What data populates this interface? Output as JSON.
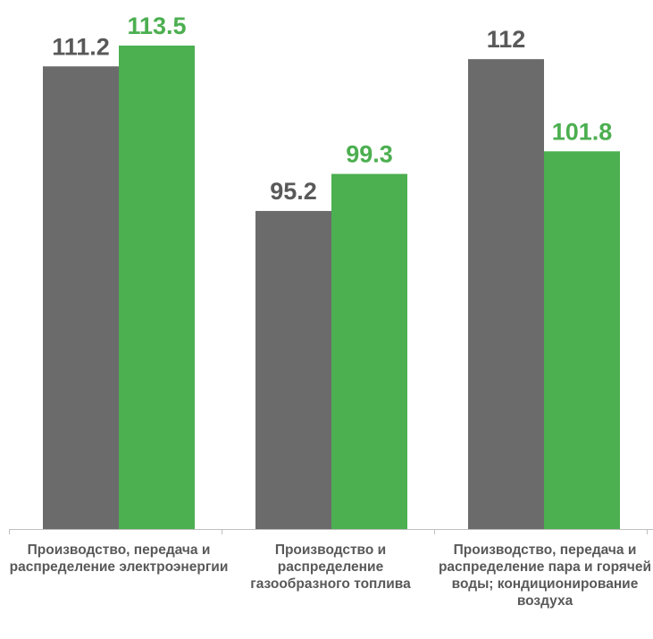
{
  "chart_data": {
    "type": "bar",
    "categories": [
      "Производство, передача и распределение электроэнергии",
      "Производство и распределение газообразного топлива",
      "Производство, передача и распределение пара и горячей воды; кондиционирование воздуха"
    ],
    "series": [
      {
        "color": "#6b6b6b",
        "values": [
          111.2,
          95.2,
          112
        ]
      },
      {
        "color": "#4caf50",
        "values": [
          113.5,
          99.3,
          101.8
        ]
      }
    ],
    "data_labels": [
      [
        "111.2",
        "95.2",
        "112"
      ],
      [
        "113.5",
        "99.3",
        "101.8"
      ]
    ],
    "ylim": [
      60,
      120
    ],
    "grid": false,
    "legend": "none"
  }
}
